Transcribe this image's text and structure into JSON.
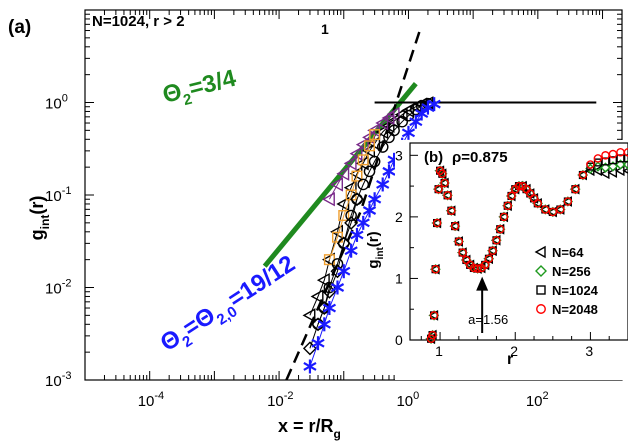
{
  "chart_data": [
    {
      "type": "scatter",
      "panel_label": "(a)",
      "title": "N=1024, r > 2",
      "extra_label": "1",
      "xlabel_main": "x = r/R",
      "xlabel_sub": "g",
      "ylabel_main": "g",
      "ylabel_sub": "int",
      "ylabel_tail": "(r)",
      "xscale": "log",
      "yscale": "log",
      "xlim": [
        1e-05,
        2000
      ],
      "ylim": [
        0.001,
        10
      ],
      "xticks": [
        {
          "base": "10",
          "exp": "-4",
          "value": 0.0001
        },
        {
          "base": "10",
          "exp": "-2",
          "value": 0.01
        },
        {
          "base": "10",
          "exp": "0",
          "value": 1
        },
        {
          "base": "10",
          "exp": "2",
          "value": 100
        }
      ],
      "yticks": [
        {
          "base": "10",
          "exp": "-3",
          "value": 0.001
        },
        {
          "base": "10",
          "exp": "-2",
          "value": 0.01
        },
        {
          "base": "10",
          "exp": "-1",
          "value": 0.1
        },
        {
          "base": "10",
          "exp": "0",
          "value": 1
        }
      ],
      "annotations": [
        {
          "text_main": "Θ",
          "text_sub": "2",
          "text_tail": "=3/4",
          "color": "#1f8a1f"
        },
        {
          "text_main": "Θ",
          "text_sub": "2",
          "text_mid": "=Θ",
          "text_sub2": "2,0",
          "text_tail": "=19/12",
          "color": "#1a1aff"
        }
      ],
      "lines": [
        {
          "kind": "guide-green",
          "color": "#1f8a1f",
          "points": [
            [
              0.006,
              0.017
            ],
            [
              1.3,
              1.6
            ]
          ]
        },
        {
          "kind": "guide-dashed",
          "color": "#000000",
          "points": [
            [
              0.013,
              0.001
            ],
            [
              0.18,
              0.065
            ],
            [
              1.5,
              6.0
            ]
          ]
        },
        {
          "kind": "plateau",
          "color": "#000000",
          "points": [
            [
              0.3,
              1.0
            ],
            [
              800,
              1.0
            ]
          ]
        }
      ],
      "series": [
        {
          "marker": "triangle-left",
          "color": "#000000",
          "x": [
            0.03,
            0.04,
            0.05,
            0.06,
            0.08,
            0.1,
            0.13,
            0.16,
            0.2,
            0.25,
            0.3,
            0.4,
            0.5,
            0.6,
            0.8,
            1.0,
            1.3,
            1.6,
            2.0
          ],
          "y": [
            0.005,
            0.008,
            0.012,
            0.02,
            0.04,
            0.08,
            0.12,
            0.17,
            0.22,
            0.3,
            0.36,
            0.48,
            0.56,
            0.63,
            0.74,
            0.82,
            0.9,
            0.95,
            0.98
          ]
        },
        {
          "marker": "triangle-left",
          "color": "#7a2a8a",
          "x": [
            0.06,
            0.08,
            0.1,
            0.13,
            0.16,
            0.2,
            0.25,
            0.3,
            0.4,
            0.5,
            0.6
          ],
          "y": [
            0.09,
            0.13,
            0.17,
            0.22,
            0.28,
            0.35,
            0.42,
            0.5,
            0.6,
            0.68,
            0.75
          ]
        },
        {
          "marker": "square",
          "color": "#f0a030",
          "x": [
            0.06,
            0.08,
            0.1,
            0.13,
            0.16,
            0.2,
            0.25,
            0.3
          ],
          "y": [
            0.02,
            0.035,
            0.06,
            0.1,
            0.16,
            0.24,
            0.34,
            0.45
          ]
        },
        {
          "marker": "diamond",
          "color": "#000000",
          "x": [
            0.03,
            0.04,
            0.05,
            0.06,
            0.08,
            0.1,
            0.13,
            0.16
          ],
          "y": [
            0.0022,
            0.004,
            0.006,
            0.009,
            0.015,
            0.03,
            0.05,
            0.09
          ]
        },
        {
          "marker": "circle",
          "color": "#000000",
          "x": [
            0.04,
            0.05,
            0.06,
            0.08,
            0.1,
            0.13,
            0.16,
            0.2,
            0.25,
            0.3,
            0.4,
            0.5,
            0.6,
            0.8,
            1.0,
            1.3,
            1.6,
            2.0
          ],
          "y": [
            0.004,
            0.006,
            0.01,
            0.018,
            0.03,
            0.06,
            0.09,
            0.13,
            0.18,
            0.23,
            0.33,
            0.42,
            0.5,
            0.62,
            0.72,
            0.84,
            0.92,
            0.97
          ]
        },
        {
          "marker": "star",
          "color": "#1a1aff",
          "x": [
            0.03,
            0.04,
            0.05,
            0.06,
            0.08,
            0.1,
            0.13,
            0.16,
            0.2,
            0.25,
            0.3,
            0.4,
            0.5,
            0.6,
            0.8,
            1.0,
            1.3,
            1.6,
            2.0,
            2.5
          ],
          "y": [
            0.0014,
            0.0025,
            0.004,
            0.006,
            0.01,
            0.015,
            0.025,
            0.037,
            0.05,
            0.068,
            0.09,
            0.13,
            0.18,
            0.24,
            0.35,
            0.47,
            0.62,
            0.76,
            0.88,
            0.96
          ]
        }
      ]
    },
    {
      "type": "scatter",
      "panel_label": "(b)",
      "title": "ρ=0.875",
      "xlabel": "r",
      "ylabel_main": "g",
      "ylabel_sub": "int",
      "ylabel_tail": "(r)",
      "xlim": [
        0.6,
        3.5
      ],
      "ylim": [
        0,
        3.2
      ],
      "xticks": [
        1,
        2,
        3
      ],
      "yticks": [
        0,
        1,
        2,
        3
      ],
      "arrow_label": "a=1.56",
      "arrow_x": 1.56,
      "legend": [
        {
          "name": "N=64",
          "marker": "triangle-left",
          "color": "#000000"
        },
        {
          "name": "N=256",
          "marker": "diamond",
          "color": "#1f9a1f"
        },
        {
          "name": "N=1024",
          "marker": "square",
          "color": "#000000"
        },
        {
          "name": "N=2048",
          "marker": "circle",
          "color": "#ff0000"
        }
      ],
      "x": [
        0.88,
        0.9,
        0.92,
        0.94,
        0.96,
        0.98,
        1.0,
        1.03,
        1.06,
        1.1,
        1.15,
        1.2,
        1.25,
        1.3,
        1.35,
        1.4,
        1.45,
        1.5,
        1.55,
        1.6,
        1.65,
        1.7,
        1.75,
        1.8,
        1.85,
        1.9,
        1.95,
        2.0,
        2.05,
        2.1,
        2.15,
        2.2,
        2.25,
        2.3,
        2.4,
        2.5,
        2.6,
        2.7,
        2.8,
        2.9,
        3.0,
        3.1,
        3.2,
        3.3,
        3.4,
        3.5
      ],
      "y": [
        0.02,
        0.08,
        0.4,
        1.15,
        1.9,
        2.45,
        2.75,
        2.7,
        2.55,
        2.35,
        2.1,
        1.85,
        1.6,
        1.42,
        1.3,
        1.22,
        1.17,
        1.16,
        1.17,
        1.22,
        1.32,
        1.45,
        1.62,
        1.8,
        2.0,
        2.18,
        2.34,
        2.45,
        2.5,
        2.5,
        2.45,
        2.38,
        2.3,
        2.22,
        2.12,
        2.08,
        2.12,
        2.25,
        2.45,
        2.68,
        2.85,
        2.95,
        3.0,
        3.02,
        3.05,
        3.05
      ],
      "tail_offsets": {
        "triangle-left": -0.3,
        "diamond": -0.2,
        "square": -0.1,
        "circle": 0
      }
    }
  ]
}
